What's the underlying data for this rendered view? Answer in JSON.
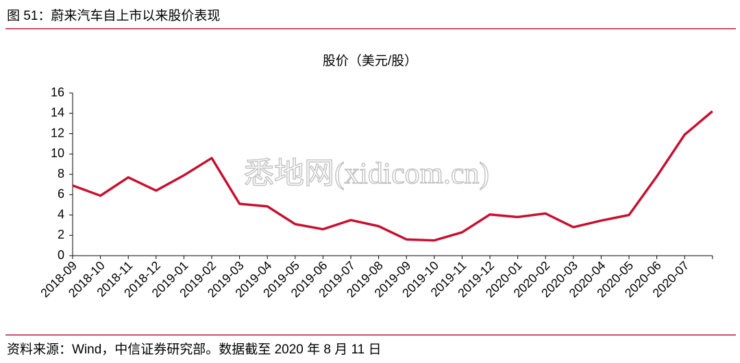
{
  "header": {
    "title": "图 51：蔚来汽车自上市以来股价表现"
  },
  "chart_data": {
    "type": "line",
    "title": "股价（美元/股）",
    "categories": [
      "2018-09",
      "2018-10",
      "2018-11",
      "2018-12",
      "2019-01",
      "2019-02",
      "2019-03",
      "2019-04",
      "2019-05",
      "2019-06",
      "2019-07",
      "2019-08",
      "2019-09",
      "2019-10",
      "2019-11",
      "2019-12",
      "2020-01",
      "2020-02",
      "2020-03",
      "2020-04",
      "2020-05",
      "2020-06",
      "2020-07",
      null
    ],
    "series": [
      {
        "name": "股价",
        "color": "#c8102e",
        "values": [
          6.9,
          5.9,
          7.7,
          6.4,
          7.9,
          9.6,
          5.1,
          4.85,
          3.1,
          2.6,
          3.5,
          2.9,
          1.6,
          1.5,
          2.3,
          4.05,
          3.8,
          4.15,
          2.8,
          3.45,
          4.0,
          7.8,
          11.9,
          14.2
        ]
      }
    ],
    "ylim": [
      0,
      16
    ],
    "yticks": [
      0,
      2,
      4,
      6,
      8,
      10,
      12,
      14,
      16
    ],
    "grid": false
  },
  "watermark": "悉地网(xidicom.cn)",
  "footer": {
    "source": "资料来源：Wind，中信证券研究部。数据截至 2020 年 8 月 11 日"
  }
}
